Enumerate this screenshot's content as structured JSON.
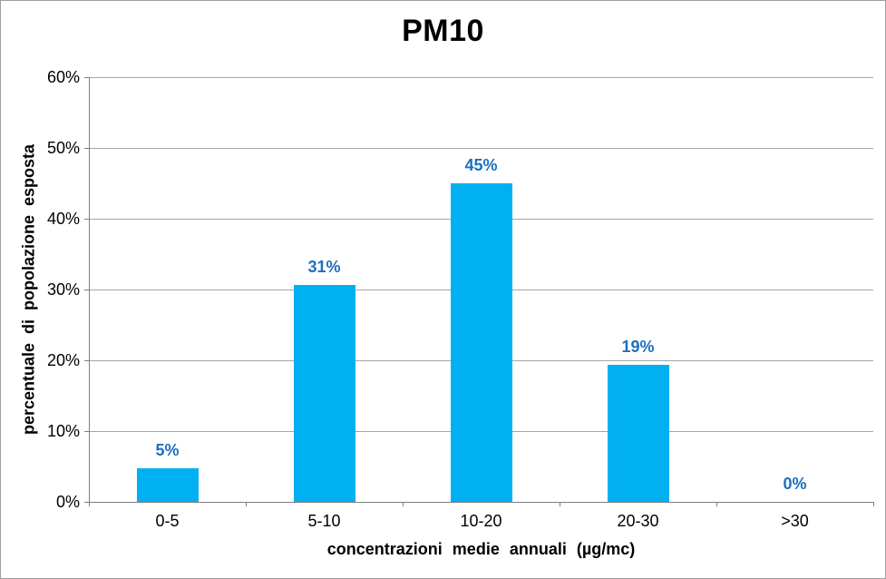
{
  "chart_data": {
    "type": "bar",
    "title": "PM10",
    "categories": [
      "0-5",
      "5-10",
      "10-20",
      "20-30",
      ">30"
    ],
    "values": [
      4.8,
      30.7,
      45.0,
      19.4,
      0.0
    ],
    "value_labels": [
      "5%",
      "31%",
      "45%",
      "19%",
      "0%"
    ],
    "xlabel": "concentrazioni medie annuali (µg/mc)",
    "ylabel": "percentuale di popolazione esposta",
    "ylim": [
      0,
      60
    ],
    "ytick_step": 10,
    "ytick_labels": [
      "0%",
      "10%",
      "20%",
      "30%",
      "40%",
      "50%",
      "60%"
    ],
    "grid": true,
    "legend": false,
    "colors": {
      "bar": "#00b0f0",
      "data_label": "#1e6fbe",
      "gridline": "#a6a6a6",
      "axis": "#7f7f7f",
      "text": "#000000",
      "border": "#9e9e9e",
      "background": "#ffffff"
    }
  }
}
